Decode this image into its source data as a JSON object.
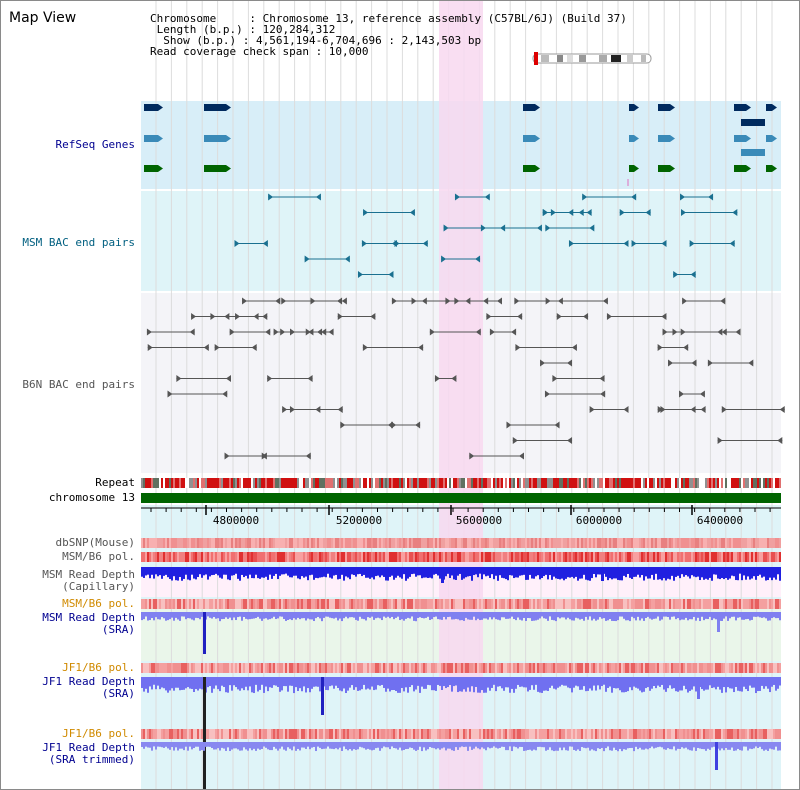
{
  "header": {
    "title": "Map View",
    "info": [
      "Chromosome     : Chromosome 13, reference assembly (C57BL/6J) (Build 37)",
      " Length (b.p.) : 120,284,312",
      "  Show (b.p.) : 4,561,194-6,704,696 : 2,143,503 bp",
      "Read coverage check span : 10,000"
    ]
  },
  "tracks": {
    "refseq": "RefSeq Genes",
    "msm_bac": "MSM BAC end pairs",
    "b6n_bac": "B6N BAC end pairs",
    "repeat": "Repeat",
    "chromosome": "chromosome 13",
    "dbsnp": "dbSNP(Mouse)",
    "msm_b6_pol_1": "MSM/B6 pol.",
    "msm_read_depth_cap": "MSM Read Depth\n(Capillary)",
    "msm_b6_pol_2": "MSM/B6 pol.",
    "msm_read_depth_sra": "MSM Read Depth\n(SRA)",
    "jf1_b6_pol_1": "JF1/B6 pol.",
    "jf1_read_depth_sra": "JF1 Read Depth\n(SRA)",
    "jf1_b6_pol_2": "JF1/B6 pol.",
    "jf1_read_depth_trim": "JF1 Read Depth\n(SRA trimmed)"
  },
  "axis": {
    "ticks": [
      "4800000",
      "5200000",
      "5600000",
      "6000000",
      "6400000"
    ]
  },
  "colors": {
    "highlight": "#f8d8f0",
    "refseq_bg": "#d8eef8",
    "bac_bg": "#dff4f8",
    "chromosome_bar": "#006400",
    "msm_depth": "#2020e0",
    "jf1_depth": "#7070f0",
    "pol_stripe": "#f08080"
  }
}
